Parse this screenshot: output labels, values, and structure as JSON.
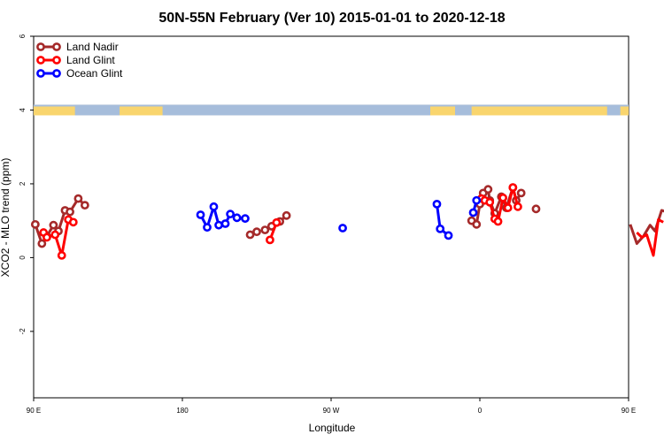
{
  "chart_data": {
    "type": "line",
    "title": "50N-55N February (Ver 10)   2015-01-01 to 2020-12-18",
    "xlabel": "Longitude",
    "ylabel": "XCO2 - MLO trend (ppm)",
    "xlim": [
      90,
      450
    ],
    "ylim": [
      -3.8,
      6
    ],
    "x_ticks": [
      {
        "value": 90,
        "label": "90 E"
      },
      {
        "value": 180,
        "label": "180"
      },
      {
        "value": 270,
        "label": "90 W"
      },
      {
        "value": 360,
        "label": "0"
      },
      {
        "value": 450,
        "label": "90 E"
      },
      {
        "value": 540,
        "label": "180"
      }
    ],
    "y_ticks": [
      {
        "value": -2,
        "label": "-2"
      },
      {
        "value": 0,
        "label": "0"
      },
      {
        "value": 2,
        "label": "2"
      },
      {
        "value": 4,
        "label": "4"
      },
      {
        "value": 6,
        "label": "6"
      }
    ],
    "legend_position": "top-left",
    "land_ocean_strip": {
      "y_center": 4,
      "land_color": "#f9d56e",
      "ocean_color": "#a6bddb"
    },
    "series": [
      {
        "name": "Land Nadir",
        "color": "#a52a2a",
        "segments": [
          {
            "x": [
              91,
              95,
              98,
              102,
              105,
              109,
              112,
              117,
              121
            ],
            "y": [
              0.9,
              0.38,
              0.58,
              0.88,
              0.72,
              1.28,
              1.24,
              1.6,
              1.42
            ]
          },
          {
            "x": [
              221,
              225
            ],
            "y": [
              0.62,
              0.7
            ]
          },
          {
            "x": [
              230,
              234,
              239,
              243
            ],
            "y": [
              0.75,
              0.85,
              0.98,
              1.14
            ]
          },
          {
            "x": [
              355,
              358,
              360,
              362,
              365,
              366,
              369,
              373,
              376,
              380,
              382,
              385
            ],
            "y": [
              1.0,
              0.9,
              1.45,
              1.75,
              1.85,
              1.55,
              1.2,
              1.65,
              1.35,
              1.9,
              1.55,
              1.75
            ]
          },
          {
            "x": [
              394
            ],
            "y": [
              1.32
            ]
          },
          {
            "x": [
              451,
              455,
              459,
              463,
              466,
              470,
              473,
              476,
              479
            ],
            "y": [
              0.9,
              0.38,
              0.58,
              0.88,
              0.72,
              1.28,
              1.24,
              1.6,
              1.42
            ]
          }
        ]
      },
      {
        "name": "Land Glint",
        "color": "#ff0000",
        "segments": [
          {
            "x": [
              96,
              98,
              103,
              107,
              111,
              114
            ],
            "y": [
              0.68,
              0.55,
              0.62,
              0.06,
              1.03,
              0.96
            ]
          },
          {
            "x": [
              233,
              237
            ],
            "y": [
              0.48,
              0.95
            ]
          },
          {
            "x": [
              361,
              363,
              366,
              369,
              371,
              374,
              377,
              380,
              383
            ],
            "y": [
              1.6,
              1.55,
              1.5,
              1.05,
              0.98,
              1.62,
              1.35,
              1.9,
              1.38
            ]
          },
          {
            "x": [
              455,
              458,
              461,
              465,
              468,
              471
            ],
            "y": [
              0.68,
              0.55,
              0.62,
              0.06,
              1.03,
              0.96
            ]
          }
        ]
      },
      {
        "name": "Ocean Glint",
        "color": "#0000ff",
        "segments": [
          {
            "x": [
              191,
              195,
              199,
              202,
              206,
              209,
              213,
              218
            ],
            "y": [
              1.16,
              0.82,
              1.38,
              0.88,
              0.92,
              1.18,
              1.08,
              1.06
            ]
          },
          {
            "x": [
              277
            ],
            "y": [
              0.8
            ]
          },
          {
            "x": [
              334,
              336,
              341
            ],
            "y": [
              1.45,
              0.78,
              0.6
            ]
          },
          {
            "x": [
              356,
              358
            ],
            "y": [
              1.22,
              1.55
            ]
          }
        ]
      }
    ]
  }
}
